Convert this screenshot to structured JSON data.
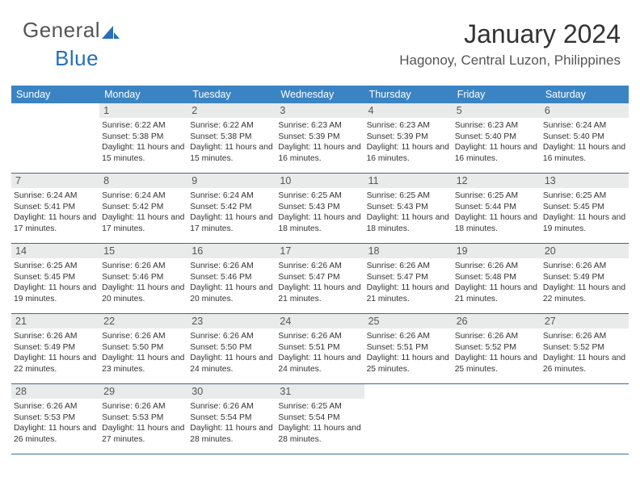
{
  "brand": {
    "part1": "General",
    "part2": "Blue"
  },
  "header": {
    "title": "January 2024",
    "location": "Hagonoy, Central Luzon, Philippines"
  },
  "colors": {
    "header_bg": "#3b84c4",
    "header_text": "#ffffff",
    "daynum_bg": "#e9eaea",
    "week_border": "#3b6a94",
    "brand_gray": "#555555",
    "brand_blue": "#2770b8"
  },
  "daynames": [
    "Sunday",
    "Monday",
    "Tuesday",
    "Wednesday",
    "Thursday",
    "Friday",
    "Saturday"
  ],
  "weeks": [
    [
      {
        "n": "",
        "sr": "",
        "ss": "",
        "dl": ""
      },
      {
        "n": "1",
        "sr": "Sunrise: 6:22 AM",
        "ss": "Sunset: 5:38 PM",
        "dl": "Daylight: 11 hours and 15 minutes."
      },
      {
        "n": "2",
        "sr": "Sunrise: 6:22 AM",
        "ss": "Sunset: 5:38 PM",
        "dl": "Daylight: 11 hours and 15 minutes."
      },
      {
        "n": "3",
        "sr": "Sunrise: 6:23 AM",
        "ss": "Sunset: 5:39 PM",
        "dl": "Daylight: 11 hours and 16 minutes."
      },
      {
        "n": "4",
        "sr": "Sunrise: 6:23 AM",
        "ss": "Sunset: 5:39 PM",
        "dl": "Daylight: 11 hours and 16 minutes."
      },
      {
        "n": "5",
        "sr": "Sunrise: 6:23 AM",
        "ss": "Sunset: 5:40 PM",
        "dl": "Daylight: 11 hours and 16 minutes."
      },
      {
        "n": "6",
        "sr": "Sunrise: 6:24 AM",
        "ss": "Sunset: 5:40 PM",
        "dl": "Daylight: 11 hours and 16 minutes."
      }
    ],
    [
      {
        "n": "7",
        "sr": "Sunrise: 6:24 AM",
        "ss": "Sunset: 5:41 PM",
        "dl": "Daylight: 11 hours and 17 minutes."
      },
      {
        "n": "8",
        "sr": "Sunrise: 6:24 AM",
        "ss": "Sunset: 5:42 PM",
        "dl": "Daylight: 11 hours and 17 minutes."
      },
      {
        "n": "9",
        "sr": "Sunrise: 6:24 AM",
        "ss": "Sunset: 5:42 PM",
        "dl": "Daylight: 11 hours and 17 minutes."
      },
      {
        "n": "10",
        "sr": "Sunrise: 6:25 AM",
        "ss": "Sunset: 5:43 PM",
        "dl": "Daylight: 11 hours and 18 minutes."
      },
      {
        "n": "11",
        "sr": "Sunrise: 6:25 AM",
        "ss": "Sunset: 5:43 PM",
        "dl": "Daylight: 11 hours and 18 minutes."
      },
      {
        "n": "12",
        "sr": "Sunrise: 6:25 AM",
        "ss": "Sunset: 5:44 PM",
        "dl": "Daylight: 11 hours and 18 minutes."
      },
      {
        "n": "13",
        "sr": "Sunrise: 6:25 AM",
        "ss": "Sunset: 5:45 PM",
        "dl": "Daylight: 11 hours and 19 minutes."
      }
    ],
    [
      {
        "n": "14",
        "sr": "Sunrise: 6:25 AM",
        "ss": "Sunset: 5:45 PM",
        "dl": "Daylight: 11 hours and 19 minutes."
      },
      {
        "n": "15",
        "sr": "Sunrise: 6:26 AM",
        "ss": "Sunset: 5:46 PM",
        "dl": "Daylight: 11 hours and 20 minutes."
      },
      {
        "n": "16",
        "sr": "Sunrise: 6:26 AM",
        "ss": "Sunset: 5:46 PM",
        "dl": "Daylight: 11 hours and 20 minutes."
      },
      {
        "n": "17",
        "sr": "Sunrise: 6:26 AM",
        "ss": "Sunset: 5:47 PM",
        "dl": "Daylight: 11 hours and 21 minutes."
      },
      {
        "n": "18",
        "sr": "Sunrise: 6:26 AM",
        "ss": "Sunset: 5:47 PM",
        "dl": "Daylight: 11 hours and 21 minutes."
      },
      {
        "n": "19",
        "sr": "Sunrise: 6:26 AM",
        "ss": "Sunset: 5:48 PM",
        "dl": "Daylight: 11 hours and 21 minutes."
      },
      {
        "n": "20",
        "sr": "Sunrise: 6:26 AM",
        "ss": "Sunset: 5:49 PM",
        "dl": "Daylight: 11 hours and 22 minutes."
      }
    ],
    [
      {
        "n": "21",
        "sr": "Sunrise: 6:26 AM",
        "ss": "Sunset: 5:49 PM",
        "dl": "Daylight: 11 hours and 22 minutes."
      },
      {
        "n": "22",
        "sr": "Sunrise: 6:26 AM",
        "ss": "Sunset: 5:50 PM",
        "dl": "Daylight: 11 hours and 23 minutes."
      },
      {
        "n": "23",
        "sr": "Sunrise: 6:26 AM",
        "ss": "Sunset: 5:50 PM",
        "dl": "Daylight: 11 hours and 24 minutes."
      },
      {
        "n": "24",
        "sr": "Sunrise: 6:26 AM",
        "ss": "Sunset: 5:51 PM",
        "dl": "Daylight: 11 hours and 24 minutes."
      },
      {
        "n": "25",
        "sr": "Sunrise: 6:26 AM",
        "ss": "Sunset: 5:51 PM",
        "dl": "Daylight: 11 hours and 25 minutes."
      },
      {
        "n": "26",
        "sr": "Sunrise: 6:26 AM",
        "ss": "Sunset: 5:52 PM",
        "dl": "Daylight: 11 hours and 25 minutes."
      },
      {
        "n": "27",
        "sr": "Sunrise: 6:26 AM",
        "ss": "Sunset: 5:52 PM",
        "dl": "Daylight: 11 hours and 26 minutes."
      }
    ],
    [
      {
        "n": "28",
        "sr": "Sunrise: 6:26 AM",
        "ss": "Sunset: 5:53 PM",
        "dl": "Daylight: 11 hours and 26 minutes."
      },
      {
        "n": "29",
        "sr": "Sunrise: 6:26 AM",
        "ss": "Sunset: 5:53 PM",
        "dl": "Daylight: 11 hours and 27 minutes."
      },
      {
        "n": "30",
        "sr": "Sunrise: 6:26 AM",
        "ss": "Sunset: 5:54 PM",
        "dl": "Daylight: 11 hours and 28 minutes."
      },
      {
        "n": "31",
        "sr": "Sunrise: 6:25 AM",
        "ss": "Sunset: 5:54 PM",
        "dl": "Daylight: 11 hours and 28 minutes."
      },
      {
        "n": "",
        "sr": "",
        "ss": "",
        "dl": ""
      },
      {
        "n": "",
        "sr": "",
        "ss": "",
        "dl": ""
      },
      {
        "n": "",
        "sr": "",
        "ss": "",
        "dl": ""
      }
    ]
  ]
}
